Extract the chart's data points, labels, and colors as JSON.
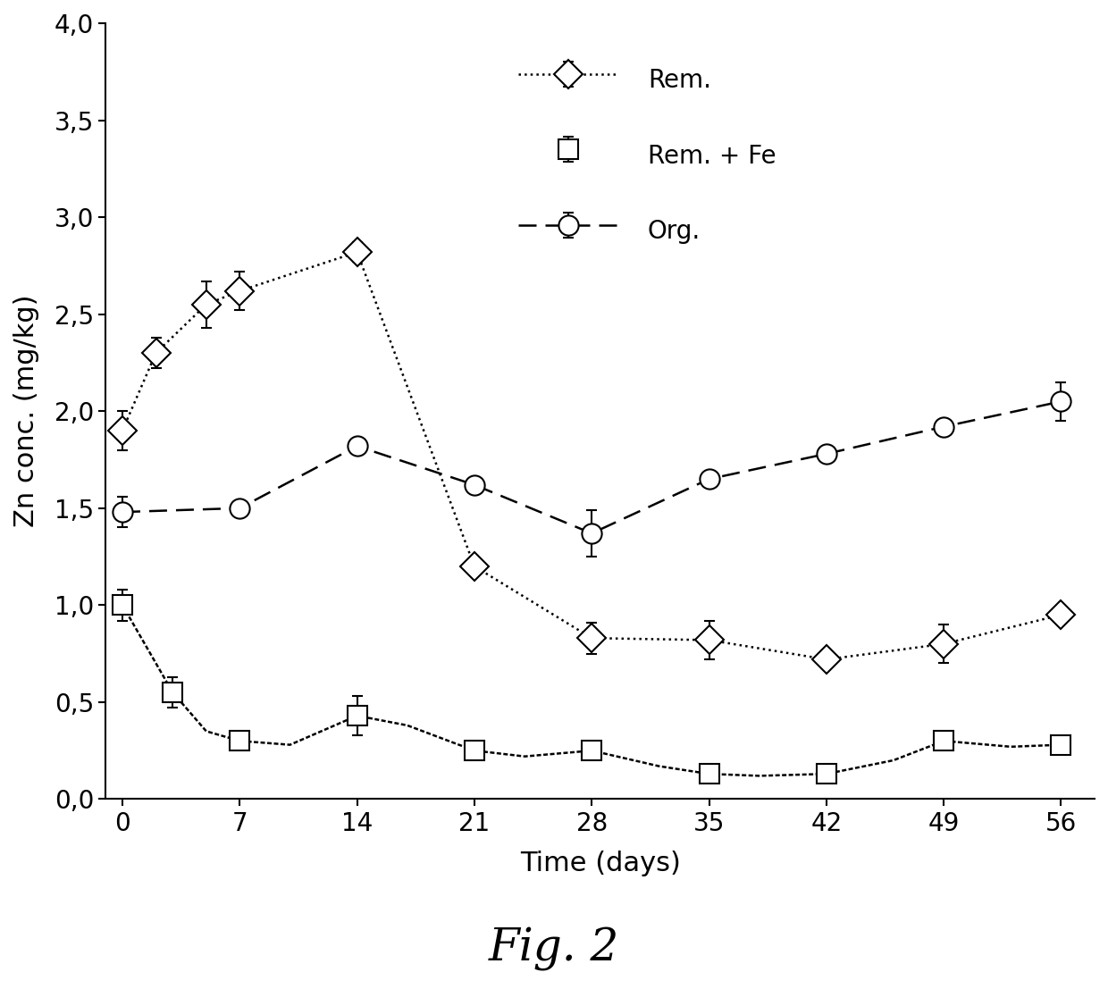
{
  "title": "Fig. 2",
  "xlabel": "Time (days)",
  "ylabel": "Zn conc. (mg/kg)",
  "ylim": [
    0.0,
    4.0
  ],
  "yticks": [
    0.0,
    0.5,
    1.0,
    1.5,
    2.0,
    2.5,
    3.0,
    3.5,
    4.0
  ],
  "ytick_labels": [
    "0,0",
    "0,5",
    "1,0",
    "1,5",
    "2,0",
    "2,5",
    "3,0",
    "3,5",
    "4,0"
  ],
  "xlim": [
    -1,
    58
  ],
  "xticks": [
    0,
    7,
    14,
    21,
    28,
    35,
    42,
    49,
    56
  ],
  "rem_x": [
    0,
    2,
    5,
    7,
    14,
    21,
    28,
    35,
    42,
    49,
    56
  ],
  "rem_y": [
    1.9,
    2.3,
    2.55,
    2.62,
    2.82,
    1.2,
    0.83,
    0.82,
    0.72,
    0.8,
    0.95
  ],
  "rem_yerr": [
    0.1,
    0.08,
    0.12,
    0.1,
    0.05,
    0.0,
    0.08,
    0.1,
    0.0,
    0.1,
    0.0
  ],
  "rem_fe_x": [
    0,
    1,
    3,
    5,
    7,
    10,
    14,
    17,
    21,
    24,
    28,
    32,
    35,
    38,
    42,
    46,
    49,
    53,
    56
  ],
  "rem_fe_y": [
    1.0,
    0.85,
    0.55,
    0.35,
    0.3,
    0.28,
    0.43,
    0.38,
    0.25,
    0.22,
    0.25,
    0.17,
    0.13,
    0.12,
    0.13,
    0.2,
    0.3,
    0.27,
    0.28
  ],
  "rem_fe_yerr": [
    0.08,
    0.0,
    0.08,
    0.0,
    0.0,
    0.0,
    0.1,
    0.0,
    0.0,
    0.0,
    0.0,
    0.0,
    0.0,
    0.0,
    0.0,
    0.0,
    0.0,
    0.0,
    0.0
  ],
  "rem_fe_marker_x": [
    0,
    3,
    7,
    14,
    21,
    28,
    35,
    42,
    49,
    56
  ],
  "rem_fe_marker_y": [
    1.0,
    0.55,
    0.3,
    0.43,
    0.25,
    0.25,
    0.13,
    0.13,
    0.3,
    0.28
  ],
  "rem_fe_marker_yerr": [
    0.08,
    0.08,
    0.0,
    0.1,
    0.0,
    0.0,
    0.0,
    0.0,
    0.0,
    0.0
  ],
  "org_x": [
    0,
    7,
    14,
    21,
    28,
    35,
    42,
    49,
    56
  ],
  "org_y": [
    1.48,
    1.5,
    1.82,
    1.62,
    1.37,
    1.65,
    1.78,
    1.92,
    2.05
  ],
  "org_yerr": [
    0.08,
    0.0,
    0.0,
    0.0,
    0.12,
    0.0,
    0.0,
    0.0,
    0.1
  ],
  "line_color": "#000000",
  "bg_color": "#ffffff",
  "legend_labels": [
    "Rem.",
    "Rem. + Fe",
    "Org."
  ]
}
